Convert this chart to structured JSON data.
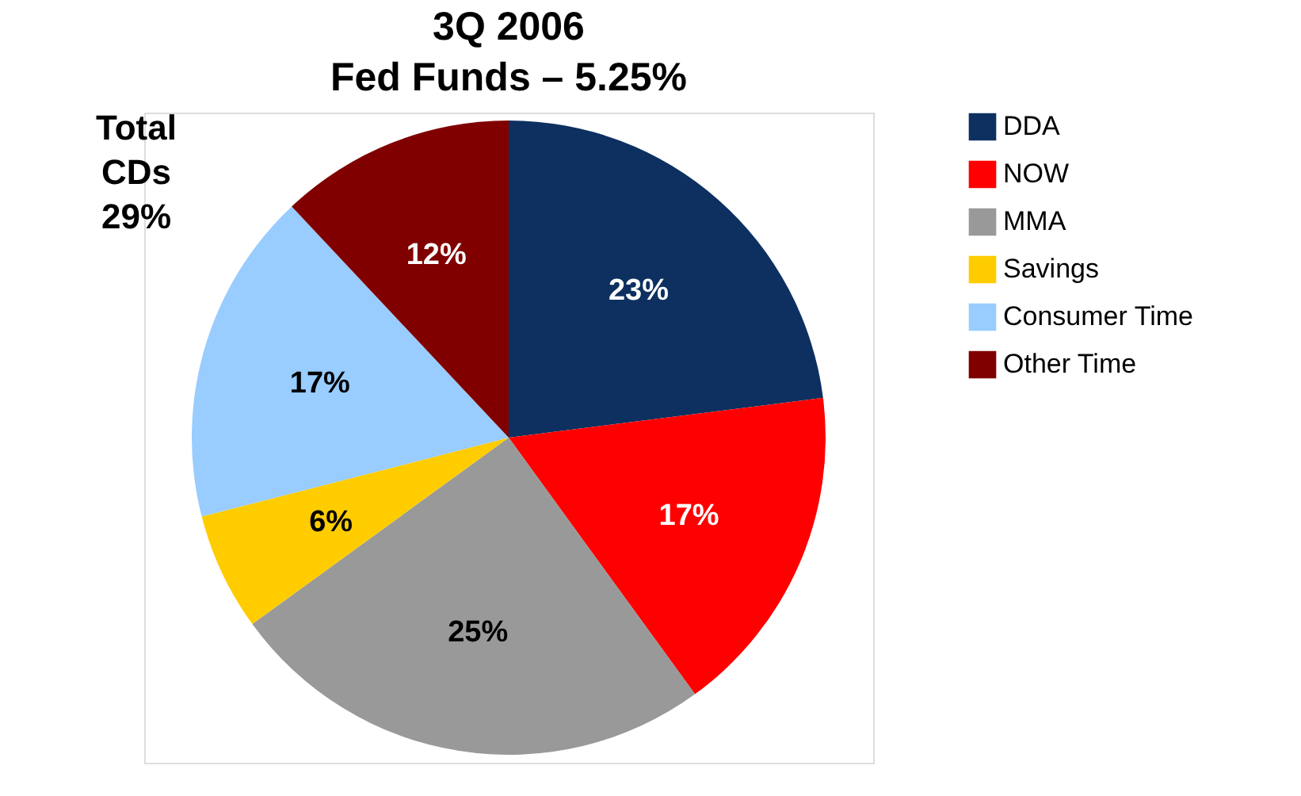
{
  "chart_data": {
    "type": "pie",
    "title": "3Q 2006\nFed Funds – 5.25%",
    "categories": [
      "DDA",
      "NOW",
      "MMA",
      "Savings",
      "Consumer Time",
      "Other Time"
    ],
    "values": [
      23,
      17,
      25,
      6,
      17,
      12
    ],
    "value_labels": [
      "23%",
      "17%",
      "25%",
      "6%",
      "17%",
      "12%"
    ],
    "colors": [
      "#0d3060",
      "#ff0000",
      "#999999",
      "#ffcc00",
      "#99ccff",
      "#800000"
    ],
    "legend": "right",
    "annotations": [
      "Total\nCDs\n29%"
    ]
  }
}
